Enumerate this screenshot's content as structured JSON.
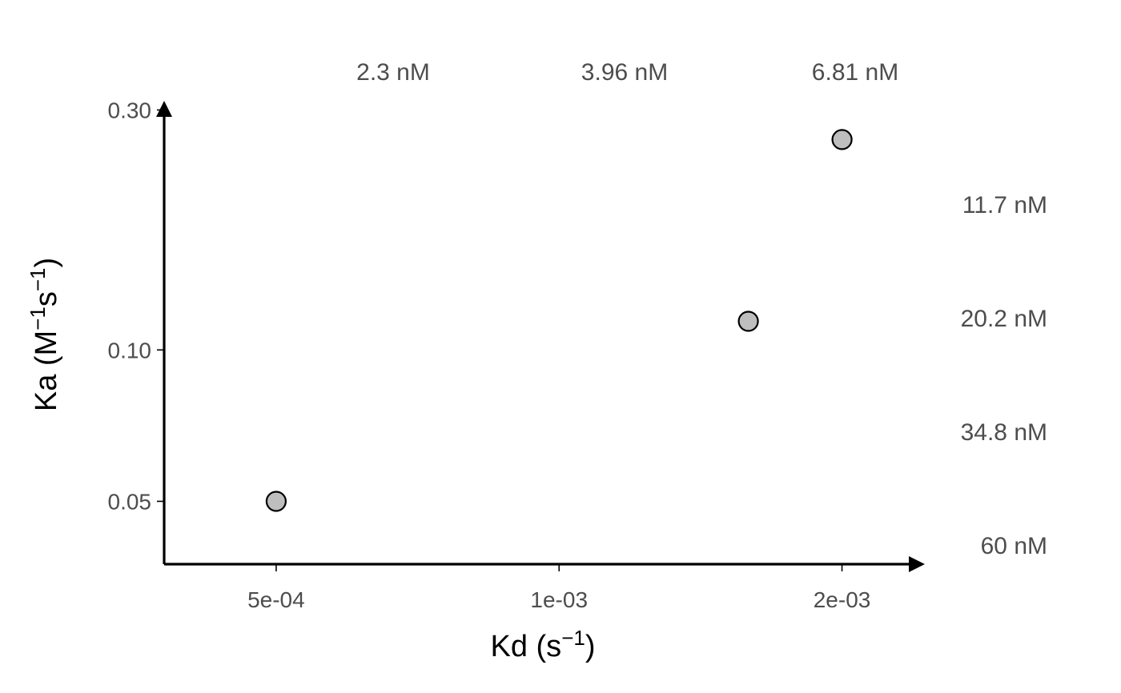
{
  "chart_data": {
    "type": "scatter",
    "x_scale": "log",
    "y_scale": "log",
    "xlabel": {
      "base": "Kd (s",
      "sup": "−1",
      "end": ")"
    },
    "ylabel": {
      "base": "Ka (M",
      "sup1": "−1",
      "mid": "s",
      "sup2": "−1",
      "end": ")"
    },
    "xlim": [
      0.00038,
      0.00245
    ],
    "ylim": [
      0.0375,
      0.306
    ],
    "x_ticks": [
      {
        "value": 0.0005,
        "label": "5e-04"
      },
      {
        "value": 0.001,
        "label": "1e-03"
      },
      {
        "value": 0.002,
        "label": "2e-03"
      }
    ],
    "y_ticks": [
      {
        "value": 0.05,
        "label": "0.05"
      },
      {
        "value": 0.1,
        "label": "0.10"
      },
      {
        "value": 0.3,
        "label": "0.30"
      }
    ],
    "points": [
      {
        "x": 0.0005,
        "y": 0.05
      },
      {
        "x": 0.00159,
        "y": 0.114
      },
      {
        "x": 0.002,
        "y": 0.262
      }
    ],
    "iso_affinity_lines": [
      {
        "label": "2.3 nM",
        "KD_nM": 2.3
      },
      {
        "label": "3.96 nM",
        "KD_nM": 3.96
      },
      {
        "label": "6.81 nM",
        "KD_nM": 6.81
      },
      {
        "label": "11.7 nM",
        "KD_nM": 11.7
      },
      {
        "label": "20.2 nM",
        "KD_nM": 20.2
      },
      {
        "label": "34.8 nM",
        "KD_nM": 34.8
      },
      {
        "label": "60 nM",
        "KD_nM": 60
      }
    ],
    "grid": false,
    "colors": {
      "point_fill": "#bebebe",
      "point_stroke": "#000000",
      "axis": "#000000",
      "iso_line": "#000000"
    }
  }
}
